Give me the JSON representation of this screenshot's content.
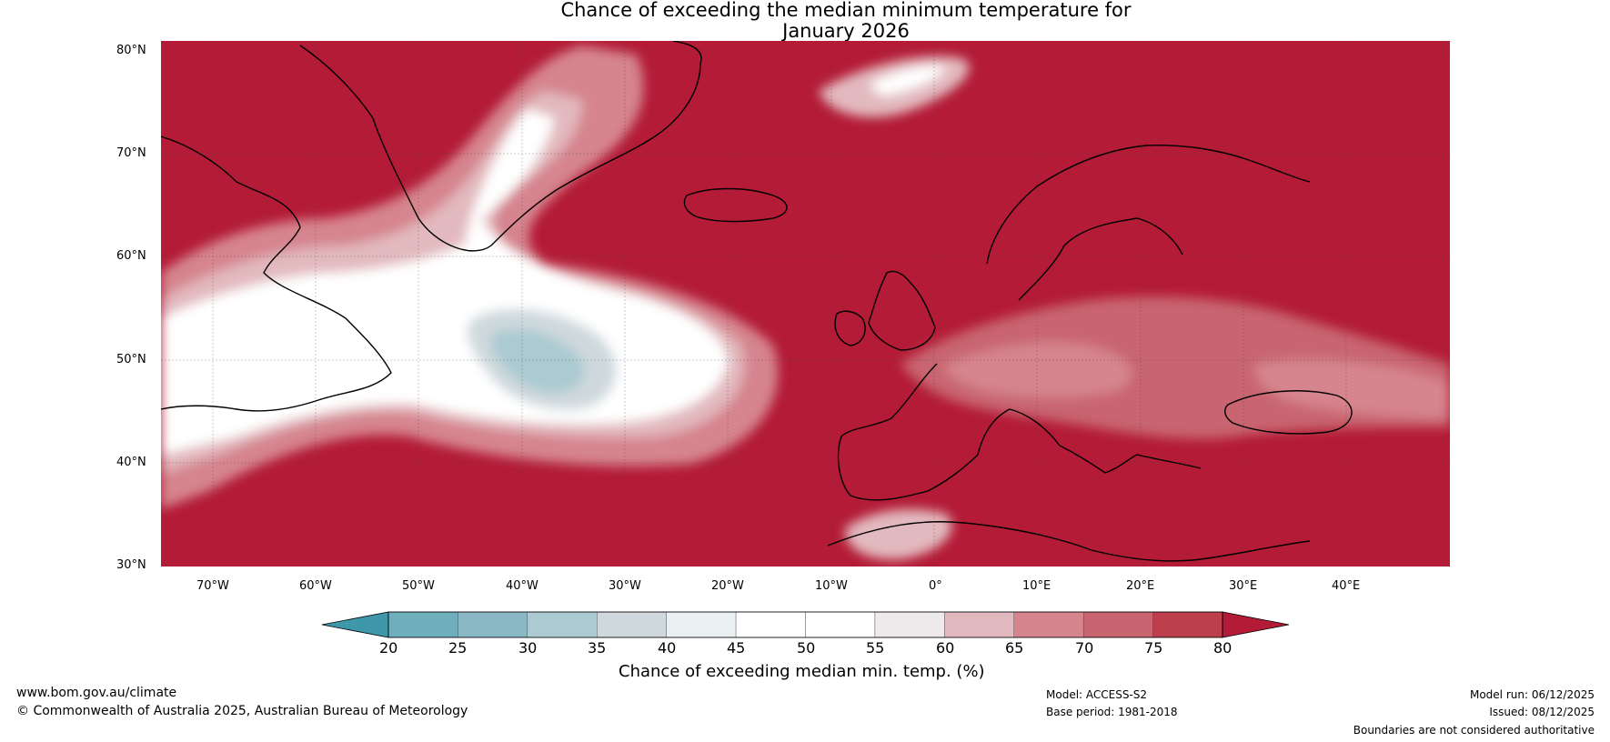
{
  "title": {
    "line1": "Chance of exceeding the median minimum temperature for",
    "line2": "January 2026"
  },
  "map": {
    "latitude_labels": [
      "80°N",
      "70°N",
      "60°N",
      "50°N",
      "40°N",
      "30°N"
    ],
    "longitude_labels": [
      "70°W",
      "60°W",
      "50°W",
      "40°W",
      "30°W",
      "20°W",
      "10°W",
      "0°",
      "10°E",
      "20°E",
      "30°E",
      "40°E"
    ],
    "lat_range": [
      30,
      81
    ],
    "lon_range": [
      -75,
      50
    ]
  },
  "colorbar": {
    "ticks": [
      "20",
      "25",
      "30",
      "35",
      "40",
      "45",
      "50",
      "55",
      "60",
      "65",
      "70",
      "75",
      "80"
    ],
    "colors": [
      "#5ba4b4",
      "#6fafbd",
      "#8ab9c5",
      "#abcad1",
      "#cfd9dd",
      "#eaf0f2",
      "#ffffff",
      "#ffffff",
      "#eee9ea",
      "#e2b9be",
      "#d6848e",
      "#c86570",
      "#bd3f4e"
    ],
    "under_color": "#3f97aa",
    "over_color": "#b31b36",
    "label": "Chance of exceeding median min. temp. (%)"
  },
  "footer": {
    "website": "www.bom.gov.au/climate",
    "copyright": "© Commonwealth of Australia 2025, Australian Bureau of Meteorology",
    "model": "Model: ACCESS-S2",
    "base_period": "Base period: 1981-2018",
    "model_run": "Model run: 06/12/2025",
    "issued": "Issued: 08/12/2025",
    "disclaimer": "Boundaries are not considered authoritative"
  }
}
